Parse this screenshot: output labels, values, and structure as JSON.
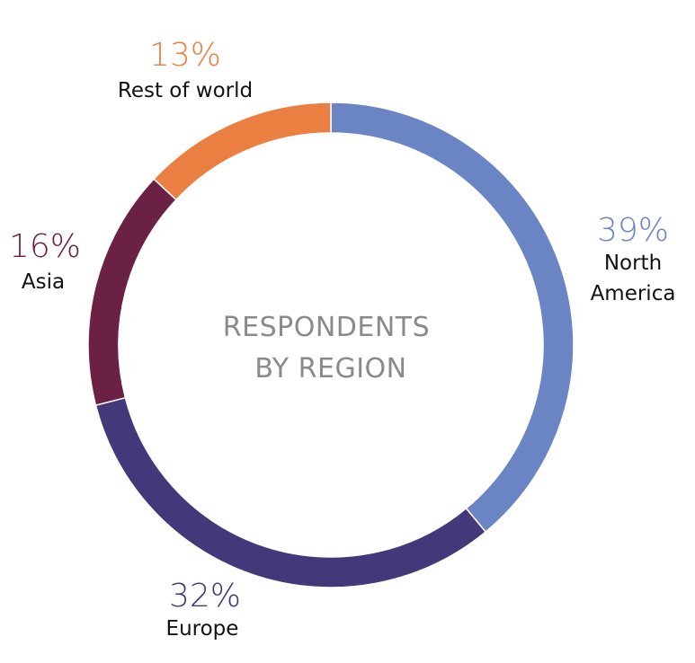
{
  "chart_data": {
    "type": "pie",
    "style": "donut",
    "center_label": [
      "RESPONDENTS",
      "BY REGION"
    ],
    "slices": [
      {
        "label": "North America",
        "label_lines": [
          "North",
          "America"
        ],
        "value": 39,
        "value_label": "39%",
        "color": "#6a84c4"
      },
      {
        "label": "Europe",
        "label_lines": [
          "Europe"
        ],
        "value": 32,
        "value_label": "32%",
        "color": "#43387a"
      },
      {
        "label": "Asia",
        "label_lines": [
          "Asia"
        ],
        "value": 16,
        "value_label": "16%",
        "color": "#6b2144"
      },
      {
        "label": "Rest of world",
        "label_lines": [
          "Rest of world"
        ],
        "value": 13,
        "value_label": "13%",
        "color": "#eb7e41"
      }
    ]
  }
}
